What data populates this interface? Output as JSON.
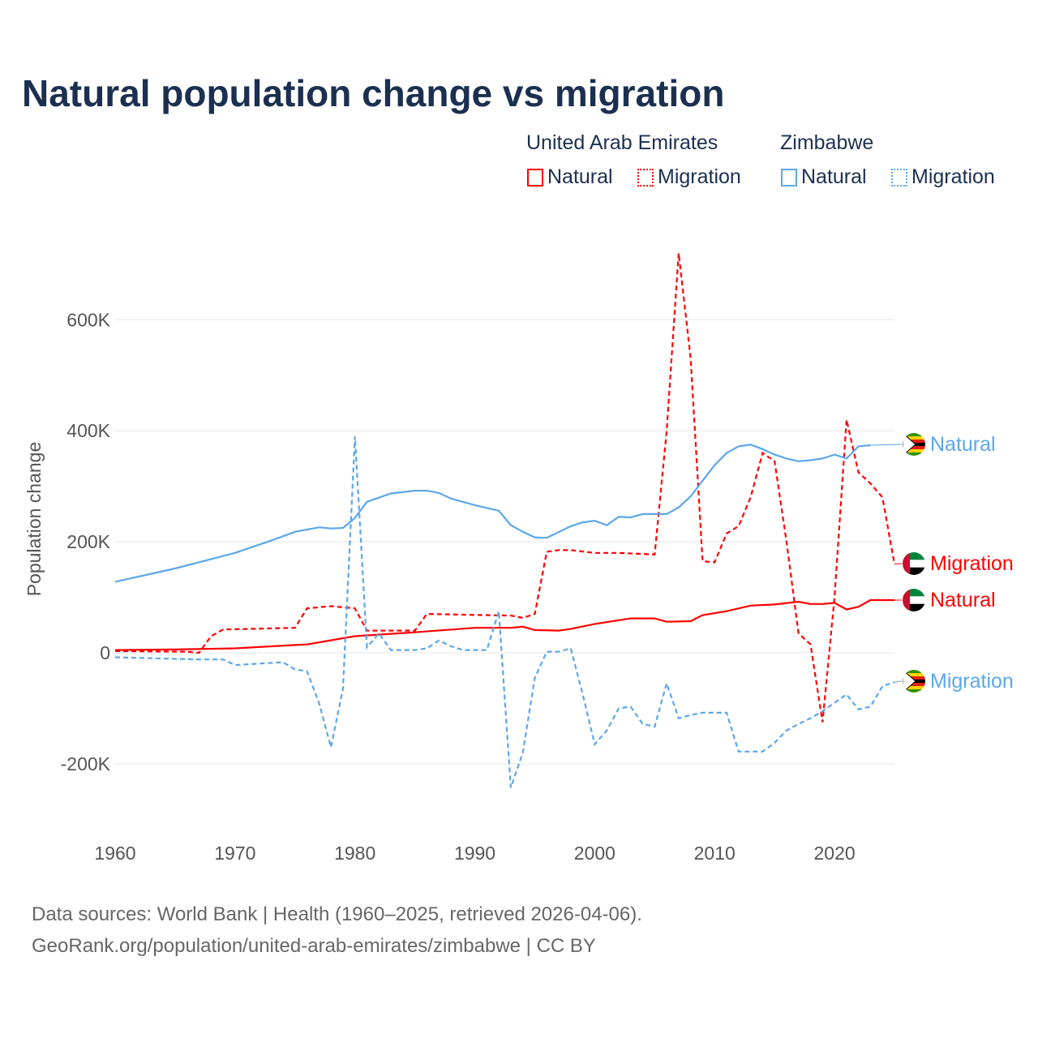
{
  "title": "Natural population change vs migration",
  "legend": {
    "groups": [
      {
        "name": "United Arab Emirates",
        "items": [
          "Natural",
          "Migration"
        ],
        "color": "#ff0000"
      },
      {
        "name": "Zimbabwe",
        "items": [
          "Natural",
          "Migration"
        ],
        "color": "#5ba7ea"
      }
    ]
  },
  "footer": {
    "line1": "Data sources: World Bank | Health (1960–2025, retrieved 2026-04-06).",
    "line2": "GeoRank.org/population/united-arab-emirates/zimbabwe | CC BY"
  },
  "chart_data": {
    "type": "line",
    "title": "Natural population change vs migration",
    "xlabel": "",
    "ylabel": "Population change",
    "xlim": [
      1960,
      2025
    ],
    "ylim": [
      -300000,
      750000
    ],
    "xticks": [
      "1960",
      "1970",
      "1980",
      "1990",
      "2000",
      "2010",
      "2020"
    ],
    "yticks": [
      {
        "v": -200000,
        "l": "-200K"
      },
      {
        "v": 0,
        "l": "0"
      },
      {
        "v": 200000,
        "l": "200K"
      },
      {
        "v": 400000,
        "l": "400K"
      },
      {
        "v": 600000,
        "l": "600K"
      }
    ],
    "grid": true,
    "series": [
      {
        "name": "Natural",
        "country": "United Arab Emirates",
        "color": "#ff0000",
        "dash": false,
        "end_label": "Natural",
        "points": [
          [
            1960,
            5
          ],
          [
            1965,
            6
          ],
          [
            1970,
            8
          ],
          [
            1975,
            14
          ],
          [
            1976,
            15
          ],
          [
            1980,
            30
          ],
          [
            1985,
            37
          ],
          [
            1990,
            45
          ],
          [
            1993,
            45
          ],
          [
            1994,
            47
          ],
          [
            1995,
            41
          ],
          [
            1997,
            40
          ],
          [
            1998,
            43
          ],
          [
            2000,
            52
          ],
          [
            2003,
            62
          ],
          [
            2005,
            62
          ],
          [
            2006,
            56
          ],
          [
            2008,
            57
          ],
          [
            2009,
            68
          ],
          [
            2011,
            75
          ],
          [
            2013,
            85
          ],
          [
            2015,
            87
          ],
          [
            2017,
            92
          ],
          [
            2018,
            88
          ],
          [
            2019,
            88
          ],
          [
            2020,
            90
          ],
          [
            2021,
            78
          ],
          [
            2022,
            83
          ],
          [
            2023,
            95
          ],
          [
            2025,
            95
          ]
        ]
      },
      {
        "name": "Migration",
        "country": "United Arab Emirates",
        "color": "#ff0000",
        "dash": true,
        "end_label": "Migration",
        "points": [
          [
            1960,
            3
          ],
          [
            1966,
            2
          ],
          [
            1967,
            0
          ],
          [
            1968,
            30
          ],
          [
            1969,
            42
          ],
          [
            1975,
            45
          ],
          [
            1976,
            80
          ],
          [
            1978,
            84
          ],
          [
            1980,
            80
          ],
          [
            1981,
            40
          ],
          [
            1985,
            40
          ],
          [
            1986,
            70
          ],
          [
            1993,
            67
          ],
          [
            1994,
            63
          ],
          [
            1995,
            70
          ],
          [
            1996,
            182
          ],
          [
            1997,
            185
          ],
          [
            1998,
            185
          ],
          [
            2000,
            180
          ],
          [
            2002,
            180
          ],
          [
            2005,
            177
          ],
          [
            2006,
            400
          ],
          [
            2007,
            720
          ],
          [
            2008,
            530
          ],
          [
            2009,
            165
          ],
          [
            2010,
            163
          ],
          [
            2011,
            215
          ],
          [
            2012,
            228
          ],
          [
            2013,
            280
          ],
          [
            2014,
            360
          ],
          [
            2015,
            345
          ],
          [
            2016,
            200
          ],
          [
            2017,
            35
          ],
          [
            2018,
            15
          ],
          [
            2019,
            -125
          ],
          [
            2020,
            100
          ],
          [
            2021,
            420
          ],
          [
            2022,
            325
          ],
          [
            2023,
            305
          ],
          [
            2024,
            280
          ],
          [
            2025,
            160
          ]
        ]
      },
      {
        "name": "Natural",
        "country": "Zimbabwe",
        "color": "#5ba7ea",
        "dash": false,
        "end_label": "Natural",
        "points": [
          [
            1960,
            128
          ],
          [
            1965,
            152
          ],
          [
            1970,
            180
          ],
          [
            1973,
            202
          ],
          [
            1975,
            218
          ],
          [
            1977,
            226
          ],
          [
            1978,
            224
          ],
          [
            1979,
            225
          ],
          [
            1980,
            243
          ],
          [
            1981,
            272
          ],
          [
            1983,
            287
          ],
          [
            1985,
            292
          ],
          [
            1986,
            292
          ],
          [
            1987,
            288
          ],
          [
            1988,
            278
          ],
          [
            1990,
            266
          ],
          [
            1992,
            256
          ],
          [
            1993,
            230
          ],
          [
            1994,
            218
          ],
          [
            1995,
            208
          ],
          [
            1996,
            207
          ],
          [
            1998,
            228
          ],
          [
            1999,
            235
          ],
          [
            2000,
            238
          ],
          [
            2001,
            230
          ],
          [
            2002,
            245
          ],
          [
            2003,
            244
          ],
          [
            2004,
            250
          ],
          [
            2006,
            250
          ],
          [
            2007,
            262
          ],
          [
            2008,
            282
          ],
          [
            2009,
            310
          ],
          [
            2010,
            338
          ],
          [
            2011,
            360
          ],
          [
            2012,
            372
          ],
          [
            2013,
            375
          ],
          [
            2014,
            367
          ],
          [
            2015,
            357
          ],
          [
            2016,
            350
          ],
          [
            2017,
            345
          ],
          [
            2018,
            347
          ],
          [
            2019,
            350
          ],
          [
            2020,
            357
          ],
          [
            2021,
            350
          ],
          [
            2022,
            372
          ],
          [
            2023,
            374
          ]
        ]
      },
      {
        "name": "Migration",
        "country": "Zimbabwe",
        "color": "#5ba7ea",
        "dash": true,
        "end_label": "Migration",
        "points": [
          [
            1960,
            -8
          ],
          [
            1967,
            -12
          ],
          [
            1969,
            -12
          ],
          [
            1970,
            -22
          ],
          [
            1974,
            -17
          ],
          [
            1975,
            -30
          ],
          [
            1976,
            -33
          ],
          [
            1977,
            -90
          ],
          [
            1978,
            -170
          ],
          [
            1979,
            -65
          ],
          [
            1980,
            390
          ],
          [
            1981,
            10
          ],
          [
            1982,
            35
          ],
          [
            1983,
            5
          ],
          [
            1985,
            5
          ],
          [
            1986,
            8
          ],
          [
            1987,
            22
          ],
          [
            1988,
            12
          ],
          [
            1989,
            5
          ],
          [
            1991,
            5
          ],
          [
            1992,
            75
          ],
          [
            1993,
            -243
          ],
          [
            1994,
            -180
          ],
          [
            1995,
            -45
          ],
          [
            1996,
            2
          ],
          [
            1997,
            2
          ],
          [
            1998,
            8
          ],
          [
            1999,
            -75
          ],
          [
            2000,
            -165
          ],
          [
            2001,
            -140
          ],
          [
            2002,
            -100
          ],
          [
            2003,
            -97
          ],
          [
            2004,
            -128
          ],
          [
            2005,
            -133
          ],
          [
            2006,
            -55
          ],
          [
            2007,
            -118
          ],
          [
            2008,
            -112
          ],
          [
            2009,
            -108
          ],
          [
            2011,
            -108
          ],
          [
            2012,
            -178
          ],
          [
            2014,
            -178
          ],
          [
            2015,
            -162
          ],
          [
            2016,
            -140
          ],
          [
            2017,
            -128
          ],
          [
            2018,
            -118
          ],
          [
            2019,
            -105
          ],
          [
            2020,
            -90
          ],
          [
            2021,
            -75
          ],
          [
            2022,
            -102
          ],
          [
            2023,
            -97
          ],
          [
            2024,
            -60
          ],
          [
            2025,
            -53
          ]
        ]
      }
    ],
    "units_note": "values in thousands"
  }
}
